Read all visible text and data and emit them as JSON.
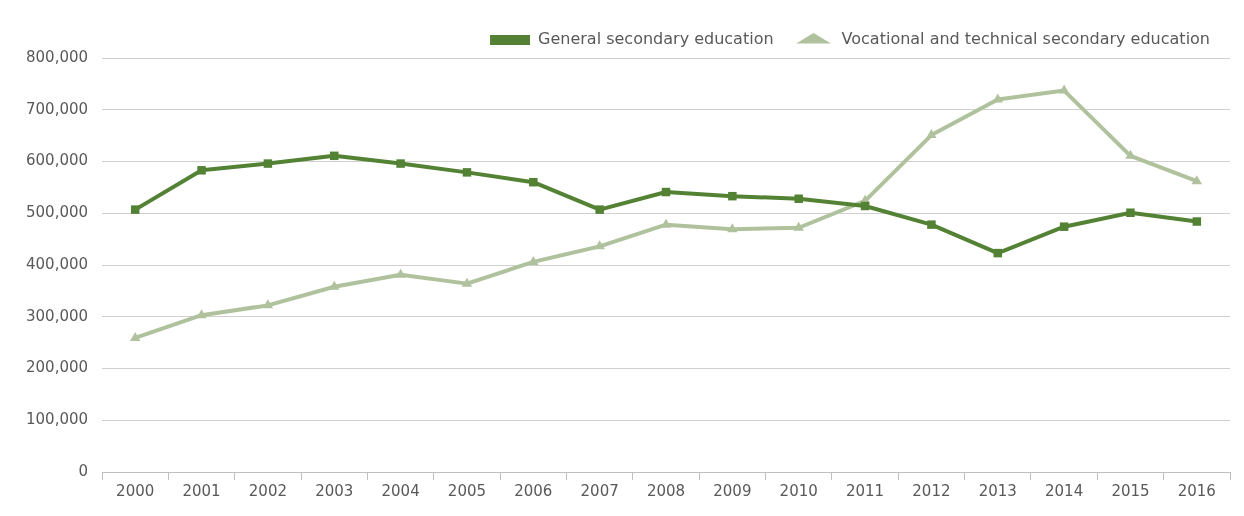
{
  "chart_data": {
    "type": "line",
    "categories": [
      "2000",
      "2001",
      "2002",
      "2003",
      "2004",
      "2005",
      "2006",
      "2007",
      "2008",
      "2009",
      "2010",
      "2011",
      "2012",
      "2013",
      "2014",
      "2015",
      "2016"
    ],
    "series": [
      {
        "name": "General secondary education",
        "color": "#548235",
        "marker": "square",
        "values": [
          507000,
          583000,
          596000,
          611000,
          596000,
          579000,
          560000,
          507000,
          541000,
          533000,
          528000,
          514000,
          478000,
          423000,
          474000,
          501000,
          484000
        ]
      },
      {
        "name": "Vocational and technical secondary education",
        "color": "#b0c29d",
        "marker": "triangle",
        "values": [
          259000,
          303000,
          322000,
          358000,
          381000,
          364000,
          406000,
          436000,
          478000,
          469000,
          472000,
          524000,
          651000,
          720000,
          737000,
          611000,
          562000
        ]
      }
    ],
    "ylim": [
      0,
      800000
    ],
    "yticks": [
      0,
      {
        "value": 100000,
        "label": "100,000"
      },
      {
        "value": 200000,
        "label": "200,000"
      },
      {
        "value": 300000,
        "label": "300,000"
      },
      {
        "value": 400000,
        "label": "400,000"
      },
      {
        "value": 500000,
        "label": "500,000"
      },
      {
        "value": 600000,
        "label": "600,000"
      },
      {
        "value": 700000,
        "label": "700,000"
      },
      {
        "value": 800000,
        "label": "800,000"
      }
    ],
    "grid": "y",
    "legend": "top right",
    "line_style": "solid"
  }
}
